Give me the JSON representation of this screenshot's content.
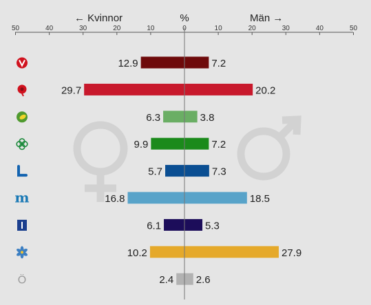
{
  "chart_data": {
    "type": "bar",
    "subtype": "population-pyramid",
    "header": {
      "left": "← Kvinnor",
      "center": "%",
      "right": "Män →"
    },
    "left_ticks": [
      "50",
      "40",
      "30",
      "20",
      "10",
      "0"
    ],
    "right_ticks": [
      "10",
      "20",
      "30",
      "40",
      "50"
    ],
    "xlim": [
      0,
      50
    ],
    "series": [
      {
        "name": "Kvinnor",
        "values": [
          12.9,
          29.7,
          6.3,
          9.9,
          5.7,
          16.8,
          6.1,
          10.2,
          2.4
        ]
      },
      {
        "name": "Män",
        "values": [
          7.2,
          20.2,
          3.8,
          7.2,
          7.3,
          18.5,
          5.3,
          27.9,
          2.6
        ]
      }
    ],
    "categories": [
      {
        "id": "v",
        "icon": "v-party-logo-icon",
        "color": "#6e0a0b",
        "icon_color": "#d0121e",
        "kvinnor": "12.9",
        "man": "7.2"
      },
      {
        "id": "s",
        "icon": "s-party-rose-icon",
        "color": "#c8192c",
        "icon_color": "#d0121e",
        "kvinnor": "29.7",
        "man": "20.2"
      },
      {
        "id": "mp",
        "icon": "mp-party-leaf-icon",
        "color": "#6aae64",
        "icon_color": "#4f9a2f",
        "kvinnor": "6.3",
        "man": "3.8"
      },
      {
        "id": "c",
        "icon": "c-party-clover-icon",
        "color": "#1b8a1b",
        "icon_color": "#1d8a3c",
        "kvinnor": "9.9",
        "man": "7.2"
      },
      {
        "id": "l",
        "icon": "l-party-logo-icon",
        "color": "#0a4e92",
        "icon_color": "#1363b0",
        "kvinnor": "5.7",
        "man": "7.3"
      },
      {
        "id": "m",
        "icon": "m-party-logo-icon",
        "color": "#58a3c9",
        "icon_color": "#1a79b5",
        "kvinnor": "16.8",
        "man": "18.5"
      },
      {
        "id": "kd",
        "icon": "kd-party-logo-icon",
        "color": "#1c0d5a",
        "icon_color": "#1b3f8e",
        "kvinnor": "6.1",
        "man": "5.3"
      },
      {
        "id": "sd",
        "icon": "sd-party-flower-icon",
        "color": "#e5a92a",
        "icon_color": "#3c7fc2",
        "kvinnor": "10.2",
        "man": "27.9"
      },
      {
        "id": "o",
        "icon": "ovriga-o-icon",
        "color": "#b2b2b2",
        "icon_color": "#9a9a9a",
        "kvinnor": "2.4",
        "man": "2.6",
        "icon_text": "Ö"
      }
    ],
    "watermarks": [
      "female-symbol-icon",
      "male-symbol-icon"
    ],
    "grid": false
  }
}
